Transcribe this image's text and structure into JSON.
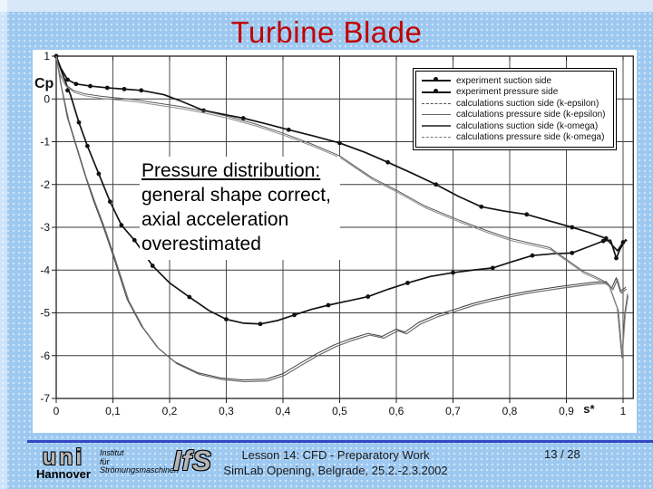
{
  "slide": {
    "title": "Turbine Blade",
    "title_color": "#c00000"
  },
  "annotation": {
    "line1": "Pressure distribution:",
    "line2": "general shape correct,",
    "line3": "axial acceleration",
    "line4": "overestimated"
  },
  "footer": {
    "rule_color": "#3347c2",
    "logo_uni": "uni",
    "logo_uni_sub": "Hannover",
    "institute_lines": [
      "Institut",
      "für",
      "Strömungsmaschinen"
    ],
    "logo_ifs": "IfS",
    "lesson_line": "Lesson 14: CFD - Preparatory Work",
    "event_line": "SimLab Opening, Belgrade, 25.2.-2.3.2002",
    "page": "13 / 28"
  },
  "chart_data": {
    "type": "line",
    "title": "",
    "xlabel": "s*",
    "ylabel": "Cp",
    "xlim": [
      0,
      1.018
    ],
    "ylim": [
      -7,
      1
    ],
    "grid": true,
    "legend_position": "upper right",
    "xticks": {
      "values": [
        0,
        0.1,
        0.2,
        0.3,
        0.4,
        0.5,
        0.6,
        0.7,
        0.8,
        0.9,
        1
      ],
      "labels": [
        "0",
        "0,1",
        "0,2",
        "0,3",
        "0,4",
        "0,5",
        "0,6",
        "0,7",
        "0,8",
        "0,9",
        "1"
      ]
    },
    "yticks": {
      "values": [
        1,
        0,
        -1,
        -2,
        -3,
        -4,
        -5,
        -6,
        -7
      ],
      "labels": [
        "1",
        "0",
        "-1",
        "-2",
        "-3",
        "-4",
        "-5",
        "-6",
        "-7"
      ]
    },
    "legend": [
      {
        "label": "experiment suction side",
        "sample": "marker"
      },
      {
        "label": "experiment pressure side",
        "sample": "marker"
      },
      {
        "label": "calculations suction side (k-epsilon)",
        "sample": "dash"
      },
      {
        "label": "calculations pressure side (k-epsilon)",
        "sample": "thin"
      },
      {
        "label": "calculations suction side (k-omega)",
        "sample": "solid"
      },
      {
        "label": "calculations pressure side (k-omega)",
        "sample": "dashdot"
      }
    ],
    "series": [
      {
        "name": "experiment suction side",
        "stroke": "#141414",
        "width": 1.7,
        "marker": true,
        "points": [
          [
            0,
            1.0
          ],
          [
            0.01,
            0.62
          ],
          [
            0.025,
            0.1
          ],
          [
            0.04,
            -0.55
          ],
          [
            0.055,
            -1.1
          ],
          [
            0.075,
            -1.75
          ],
          [
            0.095,
            -2.4
          ],
          [
            0.115,
            -2.95
          ],
          [
            0.138,
            -3.3
          ],
          [
            0.17,
            -3.9
          ],
          [
            0.2,
            -4.3
          ],
          [
            0.235,
            -4.63
          ],
          [
            0.27,
            -4.95
          ],
          [
            0.3,
            -5.15
          ],
          [
            0.33,
            -5.24
          ],
          [
            0.36,
            -5.26
          ],
          [
            0.39,
            -5.18
          ],
          [
            0.42,
            -5.05
          ],
          [
            0.45,
            -4.92
          ],
          [
            0.48,
            -4.82
          ],
          [
            0.515,
            -4.72
          ],
          [
            0.55,
            -4.62
          ],
          [
            0.585,
            -4.45
          ],
          [
            0.62,
            -4.3
          ],
          [
            0.66,
            -4.15
          ],
          [
            0.7,
            -4.06
          ],
          [
            0.735,
            -4.0
          ],
          [
            0.77,
            -3.95
          ],
          [
            0.805,
            -3.8
          ],
          [
            0.84,
            -3.66
          ],
          [
            0.875,
            -3.62
          ],
          [
            0.91,
            -3.6
          ],
          [
            0.94,
            -3.45
          ],
          [
            0.965,
            -3.32
          ],
          [
            0.978,
            -3.3
          ],
          [
            0.988,
            -3.72
          ],
          [
            0.995,
            -3.5
          ],
          [
            1.005,
            -3.28
          ]
        ],
        "marker_points": [
          [
            0,
            1.0
          ],
          [
            0.02,
            0.2
          ],
          [
            0.04,
            -0.55
          ],
          [
            0.055,
            -1.1
          ],
          [
            0.075,
            -1.75
          ],
          [
            0.095,
            -2.4
          ],
          [
            0.115,
            -2.95
          ],
          [
            0.138,
            -3.3
          ],
          [
            0.17,
            -3.9
          ],
          [
            0.235,
            -4.63
          ],
          [
            0.3,
            -5.15
          ],
          [
            0.36,
            -5.26
          ],
          [
            0.42,
            -5.05
          ],
          [
            0.48,
            -4.82
          ],
          [
            0.55,
            -4.62
          ],
          [
            0.62,
            -4.3
          ],
          [
            0.7,
            -4.06
          ],
          [
            0.77,
            -3.95
          ],
          [
            0.84,
            -3.66
          ],
          [
            0.91,
            -3.6
          ],
          [
            0.965,
            -3.32
          ],
          [
            0.988,
            -3.72
          ],
          [
            1.0,
            -3.35
          ]
        ]
      },
      {
        "name": "experiment pressure side",
        "stroke": "#141414",
        "width": 1.7,
        "marker": true,
        "points": [
          [
            0,
            1.0
          ],
          [
            0.008,
            0.72
          ],
          [
            0.02,
            0.45
          ],
          [
            0.035,
            0.35
          ],
          [
            0.06,
            0.3
          ],
          [
            0.09,
            0.26
          ],
          [
            0.12,
            0.23
          ],
          [
            0.15,
            0.2
          ],
          [
            0.19,
            0.1
          ],
          [
            0.22,
            -0.05
          ],
          [
            0.26,
            -0.27
          ],
          [
            0.295,
            -0.36
          ],
          [
            0.33,
            -0.45
          ],
          [
            0.37,
            -0.58
          ],
          [
            0.41,
            -0.72
          ],
          [
            0.455,
            -0.87
          ],
          [
            0.5,
            -1.03
          ],
          [
            0.545,
            -1.25
          ],
          [
            0.585,
            -1.48
          ],
          [
            0.63,
            -1.75
          ],
          [
            0.67,
            -2.0
          ],
          [
            0.71,
            -2.28
          ],
          [
            0.75,
            -2.52
          ],
          [
            0.79,
            -2.62
          ],
          [
            0.83,
            -2.7
          ],
          [
            0.87,
            -2.85
          ],
          [
            0.91,
            -3.0
          ],
          [
            0.94,
            -3.12
          ],
          [
            0.97,
            -3.26
          ],
          [
            0.99,
            -3.55
          ],
          [
            1.0,
            -3.35
          ],
          [
            1.007,
            -3.3
          ]
        ],
        "marker_points": [
          [
            0,
            1.0
          ],
          [
            0.02,
            0.45
          ],
          [
            0.035,
            0.35
          ],
          [
            0.06,
            0.3
          ],
          [
            0.09,
            0.26
          ],
          [
            0.12,
            0.23
          ],
          [
            0.15,
            0.2
          ],
          [
            0.26,
            -0.27
          ],
          [
            0.33,
            -0.45
          ],
          [
            0.41,
            -0.72
          ],
          [
            0.5,
            -1.03
          ],
          [
            0.585,
            -1.48
          ],
          [
            0.67,
            -2.0
          ],
          [
            0.75,
            -2.52
          ],
          [
            0.83,
            -2.7
          ],
          [
            0.91,
            -3.0
          ],
          [
            0.97,
            -3.26
          ]
        ]
      },
      {
        "name": "calculations suction side (k-epsilon)",
        "stroke": "#3c3c3c",
        "width": 1.0,
        "marker": false,
        "points": [
          [
            0,
            1.0
          ],
          [
            0.008,
            0.35
          ],
          [
            0.02,
            -0.45
          ],
          [
            0.035,
            -1.1
          ],
          [
            0.05,
            -1.75
          ],
          [
            0.065,
            -2.35
          ],
          [
            0.082,
            -2.95
          ],
          [
            0.1,
            -3.65
          ],
          [
            0.125,
            -4.68
          ],
          [
            0.15,
            -5.3
          ],
          [
            0.178,
            -5.8
          ],
          [
            0.21,
            -6.15
          ],
          [
            0.25,
            -6.4
          ],
          [
            0.29,
            -6.52
          ],
          [
            0.33,
            -6.57
          ],
          [
            0.37,
            -6.55
          ],
          [
            0.4,
            -6.42
          ],
          [
            0.43,
            -6.18
          ],
          [
            0.46,
            -5.95
          ],
          [
            0.49,
            -5.75
          ],
          [
            0.52,
            -5.6
          ],
          [
            0.55,
            -5.48
          ],
          [
            0.575,
            -5.55
          ],
          [
            0.6,
            -5.38
          ],
          [
            0.615,
            -5.45
          ],
          [
            0.64,
            -5.22
          ],
          [
            0.67,
            -5.05
          ],
          [
            0.7,
            -4.93
          ],
          [
            0.735,
            -4.78
          ],
          [
            0.765,
            -4.68
          ],
          [
            0.8,
            -4.58
          ],
          [
            0.83,
            -4.5
          ],
          [
            0.86,
            -4.44
          ],
          [
            0.89,
            -4.38
          ],
          [
            0.92,
            -4.33
          ],
          [
            0.95,
            -4.28
          ],
          [
            0.97,
            -4.27
          ],
          [
            0.98,
            -4.42
          ],
          [
            0.988,
            -4.18
          ],
          [
            0.995,
            -4.5
          ],
          [
            1.005,
            -4.4
          ]
        ]
      },
      {
        "name": "calculations pressure side (k-epsilon)",
        "stroke": "#5a5a5a",
        "width": 1.0,
        "marker": false,
        "points": [
          [
            0,
            1.0
          ],
          [
            0.006,
            0.6
          ],
          [
            0.015,
            0.35
          ],
          [
            0.03,
            0.2
          ],
          [
            0.05,
            0.12
          ],
          [
            0.08,
            0.06
          ],
          [
            0.11,
            0.02
          ],
          [
            0.14,
            -0.02
          ],
          [
            0.18,
            -0.1
          ],
          [
            0.22,
            -0.18
          ],
          [
            0.26,
            -0.28
          ],
          [
            0.3,
            -0.4
          ],
          [
            0.35,
            -0.58
          ],
          [
            0.4,
            -0.8
          ],
          [
            0.45,
            -1.05
          ],
          [
            0.5,
            -1.33
          ],
          [
            0.53,
            -1.6
          ],
          [
            0.557,
            -1.84
          ],
          [
            0.6,
            -2.13
          ],
          [
            0.65,
            -2.5
          ],
          [
            0.71,
            -2.83
          ],
          [
            0.76,
            -3.08
          ],
          [
            0.8,
            -3.26
          ],
          [
            0.84,
            -3.38
          ],
          [
            0.87,
            -3.47
          ],
          [
            0.9,
            -3.75
          ],
          [
            0.93,
            -4.03
          ],
          [
            0.95,
            -4.15
          ],
          [
            0.965,
            -4.25
          ],
          [
            0.975,
            -4.35
          ],
          [
            0.99,
            -4.9
          ],
          [
            0.998,
            -6.05
          ],
          [
            1.003,
            -5.0
          ],
          [
            1.008,
            -4.55
          ]
        ]
      },
      {
        "name": "calculations suction side (k-omega)",
        "stroke": "#6e6e6e",
        "width": 1.2,
        "marker": false,
        "points": [
          [
            0,
            1.0
          ],
          [
            0.009,
            0.3
          ],
          [
            0.022,
            -0.5
          ],
          [
            0.037,
            -1.15
          ],
          [
            0.052,
            -1.8
          ],
          [
            0.068,
            -2.4
          ],
          [
            0.085,
            -3.0
          ],
          [
            0.103,
            -3.7
          ],
          [
            0.128,
            -4.72
          ],
          [
            0.153,
            -5.34
          ],
          [
            0.181,
            -5.84
          ],
          [
            0.213,
            -6.19
          ],
          [
            0.253,
            -6.44
          ],
          [
            0.293,
            -6.56
          ],
          [
            0.333,
            -6.61
          ],
          [
            0.373,
            -6.59
          ],
          [
            0.403,
            -6.46
          ],
          [
            0.433,
            -6.22
          ],
          [
            0.463,
            -5.99
          ],
          [
            0.493,
            -5.79
          ],
          [
            0.523,
            -5.64
          ],
          [
            0.553,
            -5.52
          ],
          [
            0.578,
            -5.59
          ],
          [
            0.603,
            -5.42
          ],
          [
            0.618,
            -5.49
          ],
          [
            0.643,
            -5.26
          ],
          [
            0.673,
            -5.09
          ],
          [
            0.703,
            -4.97
          ],
          [
            0.738,
            -4.82
          ],
          [
            0.768,
            -4.72
          ],
          [
            0.803,
            -4.62
          ],
          [
            0.833,
            -4.54
          ],
          [
            0.863,
            -4.48
          ],
          [
            0.893,
            -4.42
          ],
          [
            0.923,
            -4.37
          ],
          [
            0.953,
            -4.32
          ],
          [
            0.973,
            -4.31
          ],
          [
            0.982,
            -4.46
          ],
          [
            0.99,
            -4.22
          ],
          [
            0.997,
            -4.54
          ],
          [
            1.006,
            -4.44
          ]
        ]
      },
      {
        "name": "calculations pressure side (k-omega)",
        "stroke": "#8a8a8a",
        "width": 1.0,
        "marker": false,
        "points": [
          [
            0,
            1.0
          ],
          [
            0.007,
            0.55
          ],
          [
            0.017,
            0.3
          ],
          [
            0.032,
            0.15
          ],
          [
            0.052,
            0.07
          ],
          [
            0.082,
            0.01
          ],
          [
            0.112,
            -0.03
          ],
          [
            0.142,
            -0.07
          ],
          [
            0.182,
            -0.15
          ],
          [
            0.222,
            -0.23
          ],
          [
            0.262,
            -0.33
          ],
          [
            0.302,
            -0.45
          ],
          [
            0.352,
            -0.63
          ],
          [
            0.402,
            -0.85
          ],
          [
            0.452,
            -1.1
          ],
          [
            0.502,
            -1.38
          ],
          [
            0.532,
            -1.65
          ],
          [
            0.559,
            -1.89
          ],
          [
            0.602,
            -2.18
          ],
          [
            0.652,
            -2.55
          ],
          [
            0.712,
            -2.88
          ],
          [
            0.762,
            -3.13
          ],
          [
            0.802,
            -3.31
          ],
          [
            0.842,
            -3.43
          ],
          [
            0.872,
            -3.52
          ],
          [
            0.902,
            -3.8
          ],
          [
            0.932,
            -4.08
          ],
          [
            0.952,
            -4.2
          ],
          [
            0.967,
            -4.3
          ],
          [
            0.977,
            -4.4
          ],
          [
            0.992,
            -4.95
          ],
          [
            0.999,
            -6.0
          ],
          [
            1.004,
            -5.05
          ],
          [
            1.009,
            -4.6
          ]
        ]
      }
    ]
  }
}
